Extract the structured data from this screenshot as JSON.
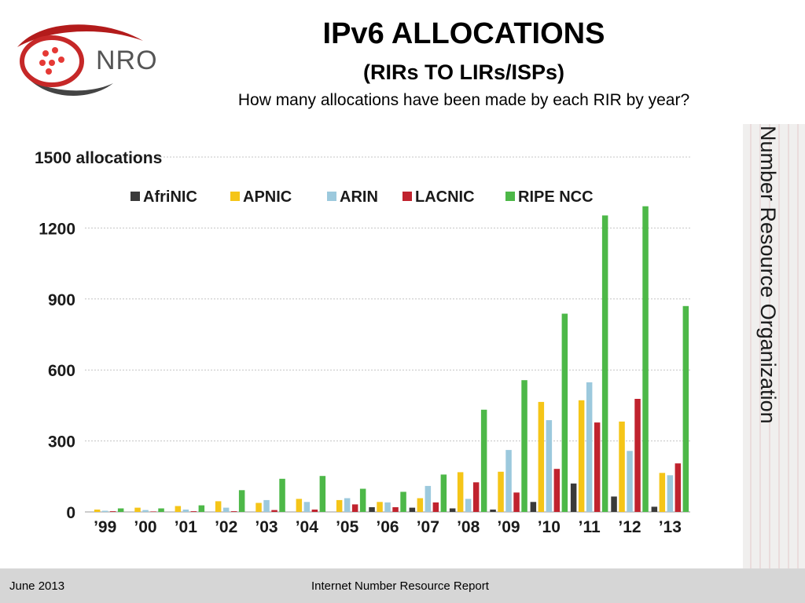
{
  "header": {
    "logo_text": "NRO",
    "title": "IPv6 ALLOCATIONS",
    "subtitle": "(RIRs TO LIRs/ISPs)",
    "question": "How many allocations have been made by each RIR by year?"
  },
  "side_label": "Number Resource Organization",
  "footer": {
    "date": "June 2013",
    "report": "Internet Number Resource Report"
  },
  "chart_data": {
    "type": "bar",
    "title": "",
    "xlabel": "",
    "ylabel": "",
    "ylim": [
      0,
      1500
    ],
    "y_ticks": [
      {
        "value": 0,
        "label": "0"
      },
      {
        "value": 300,
        "label": "300"
      },
      {
        "value": 600,
        "label": "600"
      },
      {
        "value": 900,
        "label": "900"
      },
      {
        "value": 1200,
        "label": "1200"
      },
      {
        "value": 1500,
        "label": "1500 allocations"
      }
    ],
    "grid": true,
    "legend_position": "top",
    "categories": [
      "’99",
      "’00",
      "’01",
      "’02",
      "’03",
      "’04",
      "’05",
      "’06",
      "’07",
      "’08",
      "’09",
      "’10",
      "’11",
      "’12",
      "’13"
    ],
    "series": [
      {
        "name": "AfriNIC",
        "color": "#3a3a3a",
        "values": [
          0,
          0,
          0,
          0,
          0,
          0,
          0,
          20,
          18,
          15,
          10,
          42,
          120,
          65,
          22
        ]
      },
      {
        "name": "APNIC",
        "color": "#f5c518",
        "values": [
          10,
          18,
          25,
          45,
          38,
          55,
          50,
          42,
          58,
          168,
          170,
          465,
          472,
          382,
          165
        ]
      },
      {
        "name": "ARIN",
        "color": "#9cc9dd",
        "values": [
          5,
          8,
          10,
          18,
          50,
          42,
          58,
          40,
          110,
          55,
          262,
          388,
          548,
          258,
          155
        ]
      },
      {
        "name": "LACNIC",
        "color": "#c0232e",
        "values": [
          3,
          2,
          3,
          3,
          8,
          10,
          32,
          20,
          40,
          125,
          82,
          182,
          378,
          478,
          205
        ]
      },
      {
        "name": "RIPE NCC",
        "color": "#4db848",
        "values": [
          15,
          15,
          28,
          92,
          140,
          152,
          98,
          85,
          158,
          432,
          557,
          838,
          1253,
          1292,
          870
        ]
      }
    ]
  }
}
